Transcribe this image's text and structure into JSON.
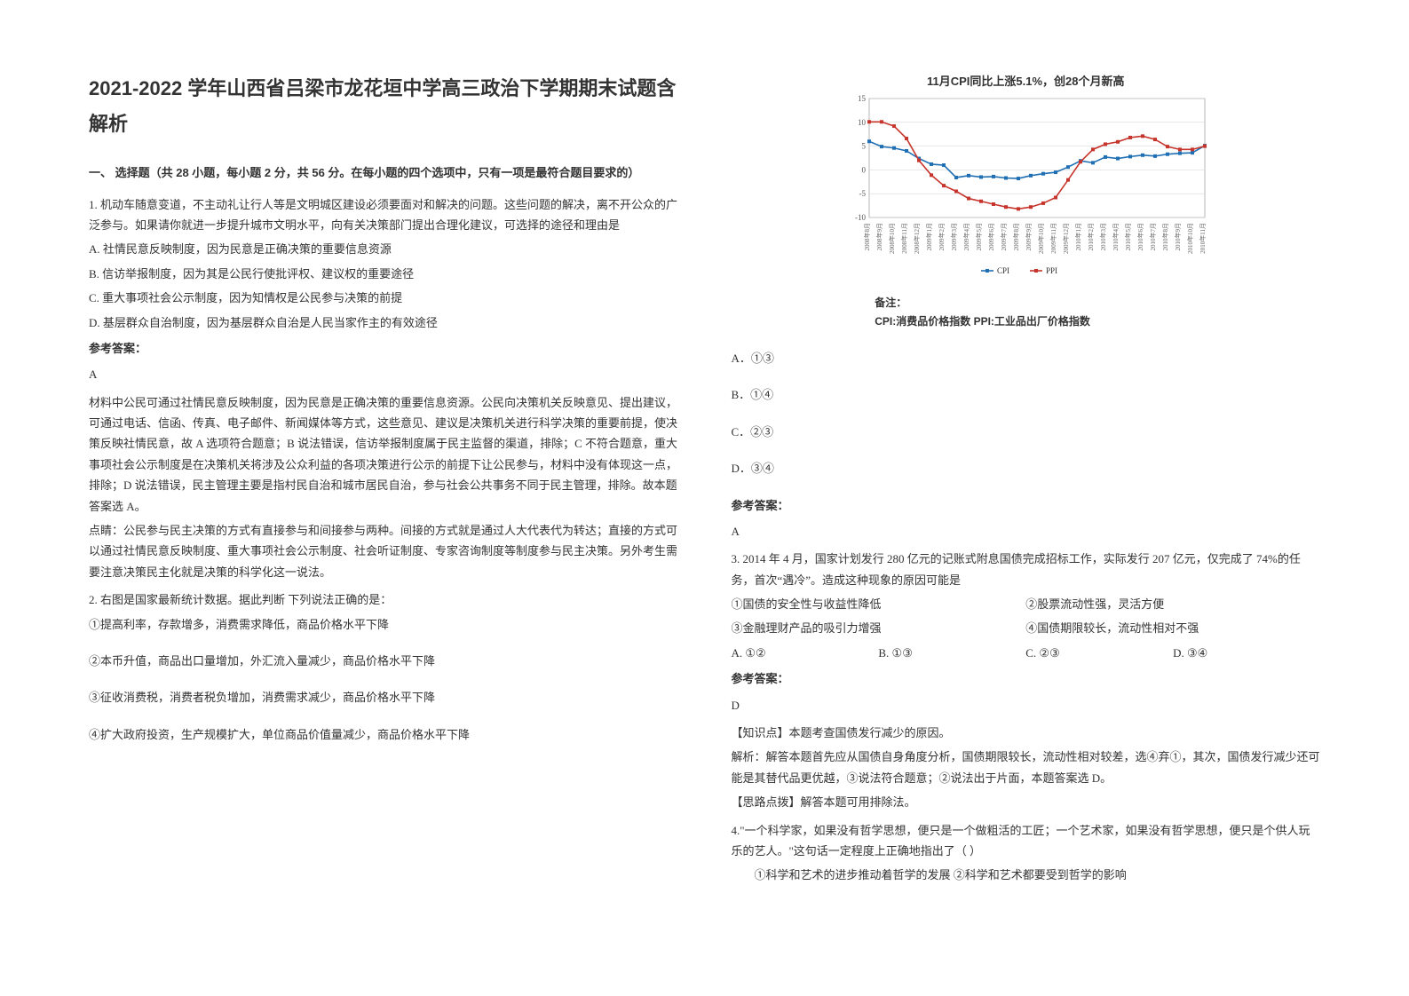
{
  "doc": {
    "title": "2021-2022 学年山西省吕梁市龙花垣中学高三政治下学期期末试题含解析",
    "section_heading": "一、 选择题（共 28 小题，每小题 2 分，共 56 分。在每小题的四个选项中，只有一项是最符合题目要求的）",
    "q1": {
      "text": "1. 机动车随意变道，不主动礼让行人等是文明城区建设必须要面对和解决的问题。这些问题的解决，离不开公众的广泛参与。如果请你就进一步提升城市文明水平，向有关决策部门提出合理化建议，可选择的途径和理由是",
      "optA": "A.  社情民意反映制度，因为民意是正确决策的重要信息资源",
      "optB": "B.  信访举报制度，因为其是公民行使批评权、建议权的重要途径",
      "optC": "C.  重大事项社会公示制度，因为知情权是公民参与决策的前提",
      "optD": "D.  基层群众自治制度，因为基层群众自治是人民当家作主的有效途径",
      "answer_label": "参考答案：",
      "answer": "A",
      "exp1": "材料中公民可通过社情民意反映制度，因为民意是正确决策的重要信息资源。公民向决策机关反映意见、提出建议，可通过电话、信函、传真、电子邮件、新闻媒体等方式，这些意见、建议是决策机关进行科学决策的重要前提，使决策反映社情民意，故 A 选项符合题意；B 说法错误，信访举报制度属于民主监督的渠道，排除；C 不符合题意，重大事项社会公示制度是在决策机关将涉及公众利益的各项决策进行公示的前提下让公民参与，材料中没有体现这一点，排除；D 说法错误，民主管理主要是指村民自治和城市居民自治，参与社会公共事务不同于民主管理，排除。故本题答案选 A。",
      "exp2": "点睛：公民参与民主决策的方式有直接参与和间接参与两种。间接的方式就是通过人大代表代为转达；直接的方式可以通过社情民意反映制度、重大事项社会公示制度、社会听证制度、专家咨询制度等制度参与民主决策。另外考生需要注意决策民主化就是决策的科学化这一说法。"
    },
    "q2": {
      "intro": "2. 右图是国家最新统计数据。据此判断  下列说法正确的是：",
      "opt1": "①提高利率，存款增多，消费需求降低，商品价格水平下降",
      "opt2": "②本币升值，商品出口量增加，外汇流入量减少，商品价格水平下降",
      "opt3": "③征收消费税，消费者税负增加，消费需求减少，商品价格水平下降",
      "opt4": "④扩大政府投资，生产规模扩大，单位商品价值量减少，商品价格水平下降",
      "optA": "A．①③",
      "optB": "B．①④",
      "optC": "C．②③",
      "optD": "D．③④",
      "answer_label": "参考答案：",
      "answer": "A"
    },
    "chart": {
      "title": "11月CPI同比上涨5.1%，创28个月新高",
      "note_label": "备注：",
      "note_text": "CPI:消费品价格指数 PPI:工业品出厂价格指数",
      "background_color": "#ffffff",
      "grid_color": "#d0d0d0",
      "y_min": -10,
      "y_max": 15,
      "y_step": 5,
      "x_labels": [
        "2008年8月",
        "2008年9月",
        "2008年10月",
        "2008年11月",
        "2008年12月",
        "2009年1月",
        "2009年2月",
        "2009年3月",
        "2009年4月",
        "2009年5月",
        "2009年6月",
        "2009年7月",
        "2009年8月",
        "2009年9月",
        "2009年10月",
        "2009年11月",
        "2009年12月",
        "2010年1月",
        "2010年2月",
        "2010年3月",
        "2010年4月",
        "2010年5月",
        "2010年6月",
        "2010年7月",
        "2010年8月",
        "2010年9月",
        "2010年10月",
        "2010年11月"
      ],
      "series": [
        {
          "name": "CPI",
          "color": "#1f6fb4",
          "values": [
            6.0,
            4.9,
            4.6,
            4.0,
            2.4,
            1.2,
            1.0,
            -1.6,
            -1.2,
            -1.5,
            -1.4,
            -1.7,
            -1.8,
            -1.2,
            -0.8,
            -0.5,
            0.6,
            1.9,
            1.5,
            2.7,
            2.4,
            2.8,
            3.1,
            2.9,
            3.3,
            3.5,
            3.6,
            5.1
          ]
        },
        {
          "name": "PPI",
          "color": "#c7342b",
          "values": [
            10.1,
            10.1,
            9.2,
            6.6,
            2.0,
            -1.1,
            -3.3,
            -4.5,
            -6.0,
            -6.6,
            -7.2,
            -7.8,
            -8.2,
            -7.8,
            -7.0,
            -5.8,
            -2.1,
            1.7,
            4.3,
            5.4,
            5.9,
            6.8,
            7.1,
            6.4,
            4.9,
            4.3,
            4.3,
            5.0
          ]
        }
      ],
      "legend": [
        "CPI",
        "PPI"
      ]
    },
    "q3": {
      "text": "3. 2014 年 4 月，国家计划发行 280 亿元的记账式附息国债完成招标工作，实际发行 207 亿元，仅完成了 74%的任务，首次“遇冷”。造成这种现象的原因可能是",
      "opt1": "①国债的安全性与收益性降低",
      "opt2": "②股票流动性强，灵活方便",
      "opt3": "③金融理财产品的吸引力增强",
      "opt4": "④国债期限较长，流动性相对不强",
      "optA": "A. ①②",
      "optB": "B. ①③",
      "optC": "C. ②③",
      "optD": "D. ③④",
      "answer_label": "参考答案：",
      "answer": "D",
      "exp_label": "【知识点】本题考查国债发行减少的原因。",
      "exp1": "解析：解答本题首先应从国债自身角度分析，国债期限较长，流动性相对较差，选④弃①，其次，国债发行减少还可能是其替代品更优越，③说法符合题意；②说法出于片面，本题答案选 D。",
      "exp2": "【思路点拨】解答本题可用排除法。"
    },
    "q4": {
      "text": "4.\"一个科学家，如果没有哲学思想，便只是一个做粗活的工匠；一个艺术家，如果没有哲学思想，便只是个供人玩乐的艺人。\"这句话一定程度上正确地指出了（   ）",
      "opt1": "①科学和艺术的进步推动着哲学的发展    ②科学和艺术都要受到哲学的影响"
    }
  }
}
